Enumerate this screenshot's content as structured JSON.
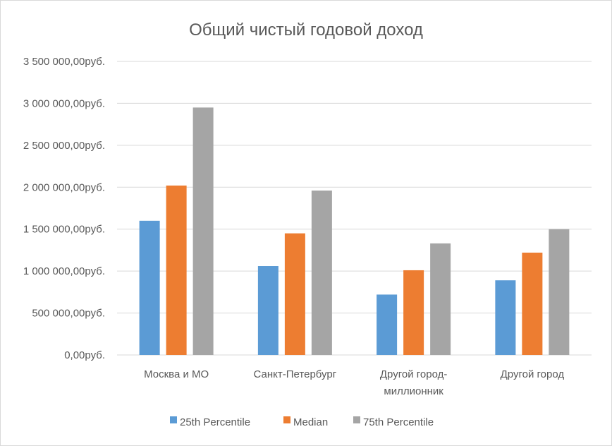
{
  "chart_data": {
    "type": "bar",
    "title": "Общий чистый годовой доход",
    "categories": [
      [
        "Москва и МО"
      ],
      [
        "Санкт-Петербург"
      ],
      [
        "Другой город-",
        "миллионник"
      ],
      [
        "Другой город"
      ]
    ],
    "series": [
      {
        "name": "25th Percentile",
        "color": "#5b9bd5",
        "values": [
          1600000,
          1060000,
          720000,
          890000
        ]
      },
      {
        "name": "Median",
        "color": "#ed7d31",
        "values": [
          2020000,
          1450000,
          1010000,
          1220000
        ]
      },
      {
        "name": "75th Percentile",
        "color": "#a5a5a5",
        "values": [
          2950000,
          1960000,
          1330000,
          1500000
        ]
      }
    ],
    "ylim": [
      0,
      3500000
    ],
    "yticks": [
      {
        "value": 0,
        "label": "0,00руб."
      },
      {
        "value": 500000,
        "label": "500 000,00руб."
      },
      {
        "value": 1000000,
        "label": "1 000 000,00руб."
      },
      {
        "value": 1500000,
        "label": "1 500 000,00руб."
      },
      {
        "value": 2000000,
        "label": "2 000 000,00руб."
      },
      {
        "value": 2500000,
        "label": "2 500 000,00руб."
      },
      {
        "value": 3000000,
        "label": "3 000 000,00руб."
      },
      {
        "value": 3500000,
        "label": "3 500 000,00руб."
      }
    ],
    "grid": true,
    "legend_position": "bottom"
  }
}
